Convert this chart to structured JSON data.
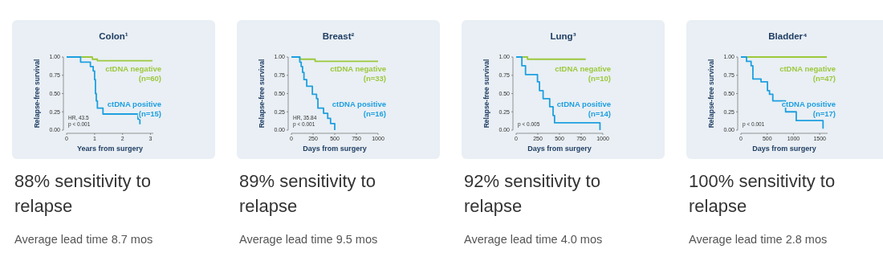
{
  "chart_data": [
    {
      "type": "step",
      "title": "Colon¹",
      "subtitle": "88% sensitivity to relapse",
      "xlabel": "Years from surgery",
      "ylabel": "Relapse-free survival",
      "xlim": [
        0,
        3.1
      ],
      "xticks": [
        0,
        1,
        2,
        3
      ],
      "ylim": [
        0,
        1
      ],
      "yticks": [
        {
          "value": 0,
          "label": "0.00"
        },
        {
          "value": 0.25,
          "label": "0.25"
        },
        {
          "value": 0.5,
          "label": "0.50"
        },
        {
          "value": 0.75,
          "label": "0.75"
        },
        {
          "value": 1,
          "label": "1.00"
        }
      ],
      "series": [
        {
          "name": "ctDNA negative (n=60)",
          "color": "#9cc83c",
          "x": [
            0,
            0.92,
            1.1,
            3.07
          ],
          "values": [
            1,
            0.97,
            0.95,
            0.95
          ]
        },
        {
          "name": "ctDNA positive (n=15)",
          "color": "#1e9fe0",
          "x": [
            0,
            0.5,
            0.85,
            0.95,
            1.0,
            1.03,
            1.06,
            1.1,
            1.3,
            2.55,
            2.62
          ],
          "values": [
            1,
            0.93,
            0.87,
            0.81,
            0.69,
            0.5,
            0.4,
            0.3,
            0.22,
            0.15,
            0.08
          ]
        }
      ],
      "annotations": [
        "HR, 43.5",
        "p < 0.001",
        "Average lead time 8.7 mos"
      ]
    },
    {
      "type": "step",
      "title": "Breast²",
      "subtitle": "89% sensitivity to relapse",
      "xlabel": "Days from surgery",
      "ylabel": "Relapse-free survival",
      "xlim": [
        0,
        1000
      ],
      "xticks": [
        0,
        250,
        500,
        750,
        1000
      ],
      "ylim": [
        0,
        1
      ],
      "yticks": [
        {
          "value": 0,
          "label": "0.00"
        },
        {
          "value": 0.25,
          "label": "0.25"
        },
        {
          "value": 0.5,
          "label": "0.50"
        },
        {
          "value": 0.75,
          "label": "0.75"
        },
        {
          "value": 1,
          "label": "1.00"
        }
      ],
      "series": [
        {
          "name": "ctDNA negative (n=33)",
          "color": "#9cc83c",
          "x": [
            0,
            97,
            274,
            1000
          ],
          "values": [
            1,
            0.97,
            0.94,
            0.94
          ]
        },
        {
          "name": "ctDNA positive (n=16)",
          "color": "#1e9fe0",
          "x": [
            0,
            97,
            113,
            129,
            145,
            177,
            242,
            290,
            306,
            371,
            419,
            452,
            500
          ],
          "values": [
            1,
            0.93,
            0.87,
            0.79,
            0.69,
            0.6,
            0.49,
            0.43,
            0.3,
            0.23,
            0.16,
            0.09,
            0
          ]
        }
      ],
      "annotations": [
        "HR, 35.84",
        "p < 0.001",
        "Average lead time 9.5 mos"
      ]
    },
    {
      "type": "step",
      "title": "Lung³",
      "subtitle": "92% sensitivity to relapse",
      "xlabel": "Days from surgery",
      "ylabel": "Relapse-free survival",
      "xlim": [
        0,
        1000
      ],
      "xticks": [
        0,
        250,
        500,
        750,
        1000
      ],
      "ylim": [
        0,
        1
      ],
      "yticks": [
        {
          "value": 0,
          "label": "0.00"
        },
        {
          "value": 0.25,
          "label": "0.25"
        },
        {
          "value": 0.5,
          "label": "0.50"
        },
        {
          "value": 0.75,
          "label": "0.75"
        },
        {
          "value": 1,
          "label": "1.00"
        }
      ],
      "series": [
        {
          "name": "ctDNA negative (n=10)",
          "color": "#9cc83c",
          "x": [
            0,
            131,
            803
          ],
          "values": [
            1,
            0.97,
            0.97
          ]
        },
        {
          "name": "ctDNA positive (n=14)",
          "color": "#1e9fe0",
          "x": [
            0,
            66,
            108,
            246,
            269,
            311,
            387,
            426,
            443,
            967
          ],
          "values": [
            1,
            0.88,
            0.76,
            0.66,
            0.54,
            0.43,
            0.32,
            0.2,
            0.1,
            0
          ]
        }
      ],
      "annotations": [
        "p < 0.005",
        "Average lead time 4.0 mos"
      ]
    },
    {
      "type": "step",
      "title": "Bladder⁴",
      "subtitle": "100% sensitivity to relapse",
      "xlabel": "Days from surgery",
      "ylabel": "Relapse-free survival",
      "xlim": [
        0,
        1650
      ],
      "xticks": [
        0,
        500,
        1000,
        1500
      ],
      "ylim": [
        0,
        1
      ],
      "yticks": [
        {
          "value": 0,
          "label": "0.00"
        },
        {
          "value": 0.25,
          "label": "0.25"
        },
        {
          "value": 0.5,
          "label": "0.50"
        },
        {
          "value": 0.75,
          "label": "0.75"
        },
        {
          "value": 1,
          "label": "1.00"
        }
      ],
      "series": [
        {
          "name": "ctDNA negative (n=47)",
          "color": "#9cc83c",
          "x": [
            0,
            1636
          ],
          "values": [
            1,
            1
          ]
        },
        {
          "name": "ctDNA positive (n=17)",
          "color": "#1e9fe0",
          "x": [
            0,
            107,
            194,
            228,
            383,
            505,
            544,
            607,
            850,
            1053,
            1563
          ],
          "values": [
            1,
            0.94,
            0.88,
            0.7,
            0.66,
            0.54,
            0.49,
            0.4,
            0.25,
            0.13,
            0.02
          ]
        }
      ],
      "annotations": [
        "p < 0.001",
        "Average lead time 2.8 mos"
      ]
    }
  ]
}
